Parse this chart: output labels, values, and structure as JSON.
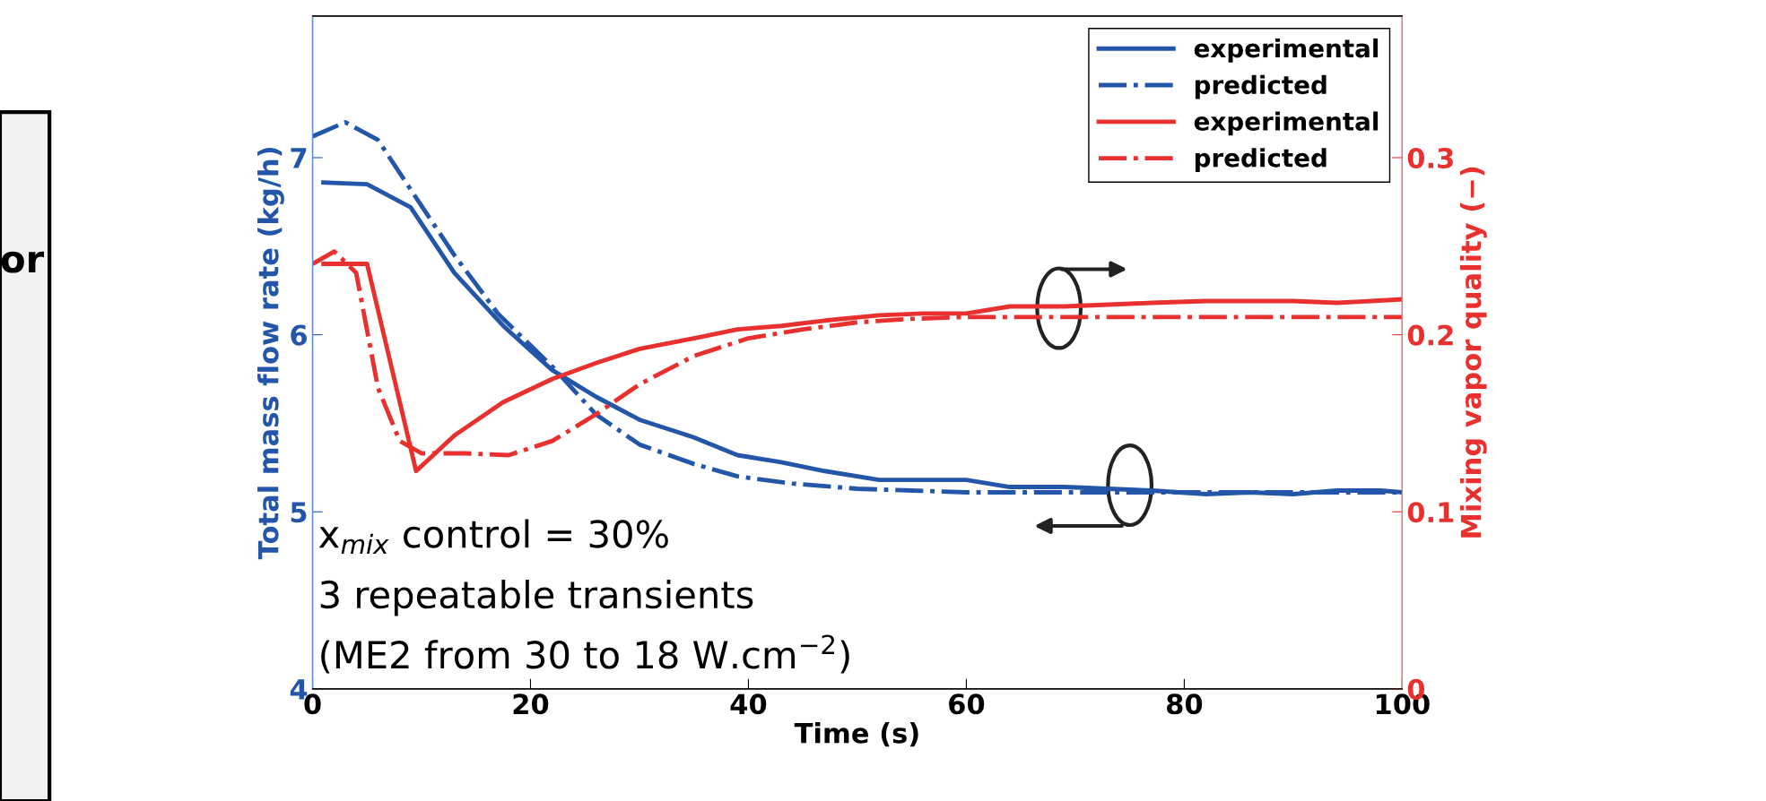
{
  "chart_data": {
    "type": "line",
    "xlabel": "Time (s)",
    "ylabel": "Total mass flow rate (kg/h)",
    "y2label": "Mixing vapor quality (−)",
    "xlim": [
      0,
      100
    ],
    "xticks": [
      0,
      20,
      40,
      60,
      80,
      100
    ],
    "ylim": [
      4,
      7.8
    ],
    "yticks": [
      4,
      5,
      6,
      7
    ],
    "y2lim": [
      0,
      0.38
    ],
    "y2ticks": [
      0,
      0.1,
      0.2,
      0.3
    ],
    "legend": "top right",
    "grid": false,
    "annotations": [
      "x$_{mix}$ control = 30%",
      "3 repeatable transients",
      "(ME2 from 30 to 18 W.cm$^{−2}$)",
      "or"
    ],
    "series": [
      {
        "name": "experimental",
        "color": "#2356a8",
        "line_style": "solid",
        "x": [
          1,
          5,
          9,
          13,
          17.5,
          22,
          26,
          30,
          35,
          39,
          43,
          47,
          52,
          56,
          60,
          64,
          69,
          73,
          77,
          82,
          86,
          90,
          94,
          98,
          100
        ],
        "values": [
          6.86,
          6.85,
          6.72,
          6.35,
          6.05,
          5.8,
          5.65,
          5.52,
          5.42,
          5.32,
          5.28,
          5.23,
          5.18,
          5.18,
          5.18,
          5.14,
          5.14,
          5.13,
          5.12,
          5.1,
          5.11,
          5.1,
          5.12,
          5.12,
          5.11
        ]
      },
      {
        "name": "predicted",
        "color": "#2356a8",
        "line_style": "dashdot",
        "x": [
          0,
          3,
          6,
          9,
          13,
          17,
          22,
          26,
          30,
          35,
          39,
          44,
          50,
          60,
          70,
          80,
          100
        ],
        "values": [
          7.12,
          7.2,
          7.1,
          6.82,
          6.45,
          6.12,
          5.82,
          5.55,
          5.38,
          5.27,
          5.2,
          5.16,
          5.13,
          5.11,
          5.11,
          5.11,
          5.11
        ]
      },
      {
        "name": "experimental",
        "color": "#e8312e",
        "line_style": "solid",
        "axis": "y2",
        "x": [
          1,
          5,
          9.5,
          13,
          17.5,
          22,
          26,
          30,
          35,
          39,
          43,
          47,
          52,
          56,
          60,
          64,
          69,
          73,
          77,
          82,
          86,
          90,
          94,
          100
        ],
        "values": [
          0.24,
          0.24,
          0.123,
          0.143,
          0.162,
          0.175,
          0.184,
          0.192,
          0.198,
          0.203,
          0.205,
          0.208,
          0.211,
          0.212,
          0.212,
          0.216,
          0.216,
          0.217,
          0.218,
          0.219,
          0.219,
          0.219,
          0.218,
          0.22
        ]
      },
      {
        "name": "predicted",
        "color": "#e8312e",
        "line_style": "dashdot",
        "axis": "y2",
        "x": [
          0,
          2,
          4,
          6,
          8,
          10,
          14,
          18,
          22,
          26,
          30,
          35,
          40,
          45,
          50,
          55,
          60,
          100
        ],
        "values": [
          0.24,
          0.247,
          0.235,
          0.17,
          0.14,
          0.133,
          0.133,
          0.132,
          0.14,
          0.155,
          0.172,
          0.188,
          0.198,
          0.203,
          0.207,
          0.209,
          0.21,
          0.21
        ]
      }
    ]
  }
}
